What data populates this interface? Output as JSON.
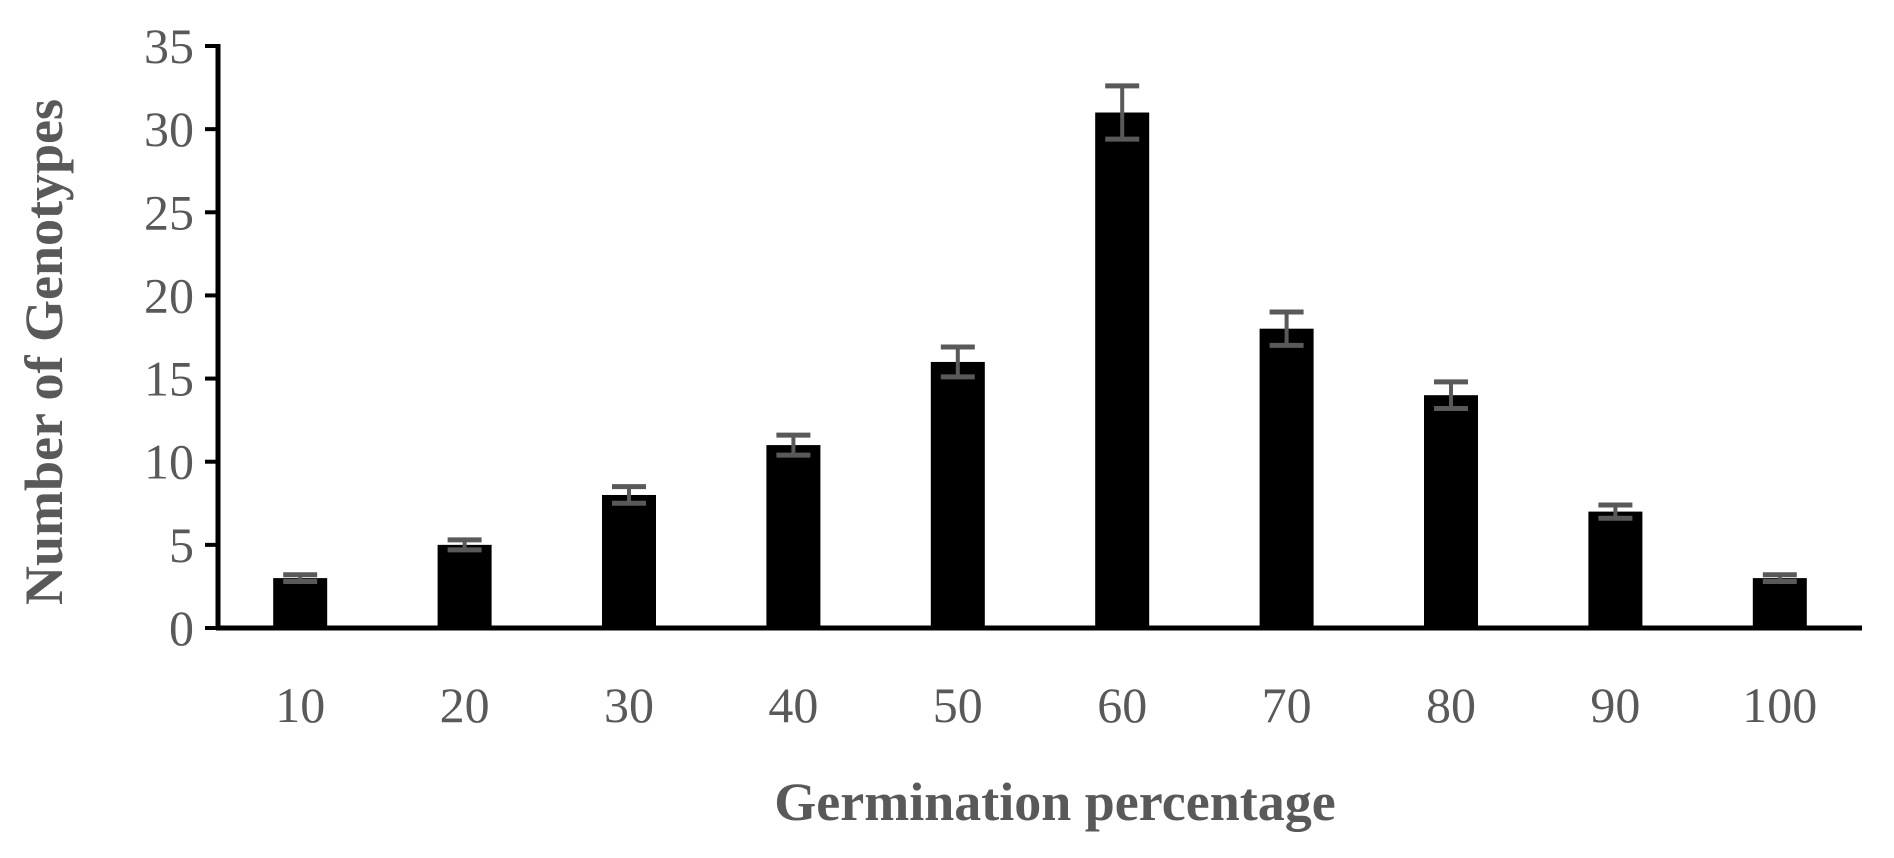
{
  "chart_data": {
    "type": "bar",
    "categories": [
      "10",
      "20",
      "30",
      "40",
      "50",
      "60",
      "70",
      "80",
      "90",
      "100"
    ],
    "values": [
      3,
      5,
      8,
      11,
      16,
      31,
      18,
      14,
      7,
      3
    ],
    "error": [
      0.2,
      0.3,
      0.5,
      0.6,
      0.9,
      1.6,
      1.0,
      0.8,
      0.4,
      0.2
    ],
    "xlabel": "Germination percentage",
    "ylabel": "Number of Genotypes",
    "ylim": [
      0,
      35
    ],
    "yticks": [
      "0",
      "5",
      "10",
      "15",
      "20",
      "25",
      "30",
      "35"
    ],
    "grid": false,
    "bar_color": "#000000",
    "error_color": "#595959",
    "text_color": "#595959"
  }
}
